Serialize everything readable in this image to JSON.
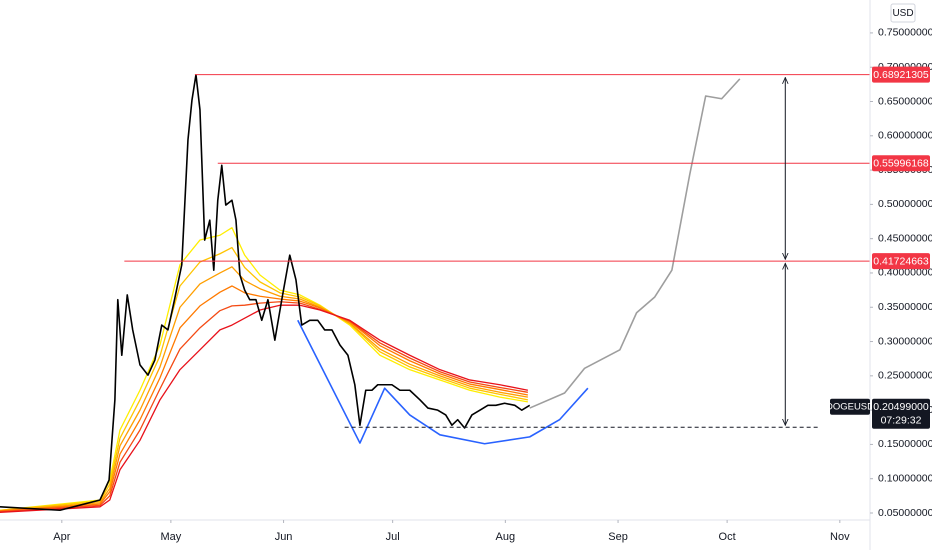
{
  "chart_data": {
    "type": "line",
    "symbol": "DOGEUSD",
    "currency": "USD",
    "xlim": [
      73,
      312.3
    ],
    "ylim": [
      0.0398,
      0.798
    ],
    "xticks": [
      {
        "value": 90,
        "label": "Apr"
      },
      {
        "value": 120,
        "label": "May"
      },
      {
        "value": 151,
        "label": "Jun"
      },
      {
        "value": 181,
        "label": "Jul"
      },
      {
        "value": 212,
        "label": "Aug"
      },
      {
        "value": 243,
        "label": "Sep"
      },
      {
        "value": 273,
        "label": "Oct"
      },
      {
        "value": 304,
        "label": "Nov"
      }
    ],
    "yticks": [
      {
        "value": 0.05,
        "label": "0.05000000"
      },
      {
        "value": 0.1,
        "label": "0.10000000"
      },
      {
        "value": 0.15,
        "label": "0.15000000"
      },
      {
        "value": 0.2,
        "label": "0.20000000"
      },
      {
        "value": 0.25,
        "label": "0.25000000"
      },
      {
        "value": 0.3,
        "label": "0.30000000"
      },
      {
        "value": 0.35,
        "label": "0.35000000"
      },
      {
        "value": 0.4,
        "label": "0.40000000"
      },
      {
        "value": 0.45,
        "label": "0.45000000"
      },
      {
        "value": 0.5,
        "label": "0.50000000"
      },
      {
        "value": 0.55,
        "label": "0.55000000"
      },
      {
        "value": 0.6,
        "label": "0.60000000"
      },
      {
        "value": 0.65,
        "label": "0.65000000"
      },
      {
        "value": 0.7,
        "label": "0.70000000"
      },
      {
        "value": 0.75,
        "label": "0.75000000"
      }
    ],
    "series": [
      {
        "color": "#ffee00",
        "x": [
          73,
          100.5,
          103.2,
          106,
          111.5,
          117,
          122.5,
          128,
          133.5,
          136.8,
          140.3,
          144.5,
          150,
          155.5,
          161,
          169.2,
          177.5,
          185.7,
          194,
          202.2,
          210.5,
          218.2
        ],
        "values": [
          0.054,
          0.069,
          0.098,
          0.171,
          0.229,
          0.295,
          0.412,
          0.448,
          0.455,
          0.466,
          0.426,
          0.397,
          0.375,
          0.368,
          0.353,
          0.324,
          0.28,
          0.259,
          0.244,
          0.229,
          0.219,
          0.212
        ]
      },
      {
        "color": "#ffc400",
        "x": [
          73,
          100.5,
          103.2,
          106,
          111.5,
          117,
          122.5,
          128,
          133.5,
          136.8,
          140.3,
          144.5,
          150,
          155.5,
          161,
          169.2,
          177.5,
          185.7,
          194,
          202.2,
          210.5,
          218.2
        ],
        "values": [
          0.054,
          0.067,
          0.092,
          0.159,
          0.215,
          0.279,
          0.381,
          0.416,
          0.428,
          0.437,
          0.408,
          0.387,
          0.371,
          0.365,
          0.352,
          0.326,
          0.285,
          0.263,
          0.247,
          0.232,
          0.223,
          0.215
        ]
      },
      {
        "color": "#ff9f00",
        "x": [
          73,
          100.5,
          103.2,
          106,
          111.5,
          117,
          122.5,
          128,
          133.5,
          136.8,
          140.3,
          144.5,
          150,
          155.5,
          161,
          169.2,
          177.5,
          185.7,
          194,
          202.2,
          210.5,
          218.2
        ],
        "values": [
          0.053,
          0.065,
          0.086,
          0.148,
          0.2,
          0.263,
          0.35,
          0.384,
          0.4,
          0.409,
          0.389,
          0.377,
          0.366,
          0.362,
          0.35,
          0.327,
          0.289,
          0.267,
          0.25,
          0.235,
          0.226,
          0.219
        ]
      },
      {
        "color": "#ff7a00",
        "x": [
          73,
          100.5,
          103.2,
          106,
          111.5,
          117,
          122.5,
          128,
          133.5,
          136.8,
          140.3,
          144.5,
          150,
          155.5,
          161,
          169.2,
          177.5,
          185.7,
          194,
          202.2,
          210.5,
          218.2
        ],
        "values": [
          0.053,
          0.063,
          0.081,
          0.136,
          0.186,
          0.247,
          0.32,
          0.352,
          0.372,
          0.381,
          0.371,
          0.366,
          0.362,
          0.359,
          0.349,
          0.329,
          0.294,
          0.272,
          0.253,
          0.238,
          0.23,
          0.222
        ]
      },
      {
        "color": "#f44a14",
        "x": [
          73,
          100.5,
          103.2,
          106,
          111.5,
          117,
          122.5,
          128,
          133.5,
          136.8,
          140.3,
          144.5,
          150,
          155.5,
          161,
          169.2,
          177.5,
          185.7,
          194,
          202.2,
          210.5,
          218.2
        ],
        "values": [
          0.052,
          0.061,
          0.075,
          0.124,
          0.171,
          0.231,
          0.289,
          0.32,
          0.345,
          0.352,
          0.353,
          0.356,
          0.358,
          0.356,
          0.347,
          0.33,
          0.298,
          0.276,
          0.256,
          0.241,
          0.233,
          0.226
        ]
      },
      {
        "color": "#e8121b",
        "x": [
          73,
          100.5,
          103.2,
          106,
          111.5,
          117,
          122.5,
          128,
          133.5,
          136.8,
          140.3,
          144.5,
          150,
          155.5,
          161,
          169.2,
          177.5,
          185.7,
          194,
          202.2,
          210.5,
          218.2
        ],
        "values": [
          0.051,
          0.059,
          0.069,
          0.113,
          0.156,
          0.215,
          0.259,
          0.288,
          0.317,
          0.324,
          0.334,
          0.346,
          0.353,
          0.353,
          0.346,
          0.331,
          0.302,
          0.28,
          0.259,
          0.244,
          0.237,
          0.229
        ]
      },
      {
        "name": "DOGEUSD",
        "color": "#000000",
        "x": [
          73,
          89.5,
          100.5,
          103,
          104.6,
          105.4,
          106.5,
          108,
          109.5,
          111.5,
          113.7,
          115.6,
          117.5,
          119.2,
          121,
          123,
          124.7,
          125.8,
          126.9,
          128,
          129.3,
          130.7,
          131.8,
          132.9,
          134,
          135.1,
          136.8,
          137.9,
          139,
          140.3,
          141.7,
          143.4,
          145,
          146.7,
          148.6,
          150.5,
          152.7,
          154.4,
          156,
          158.2,
          160.4,
          162.3,
          164.3,
          166.5,
          168.7,
          170.6,
          172,
          173.6,
          175.3,
          176.9,
          178.8,
          180.8,
          183,
          185.7,
          188.5,
          190.7,
          193.4,
          195.6,
          197.3,
          198.9,
          200.8,
          202.8,
          205,
          207.2,
          209.4,
          211.8,
          214.6,
          216.5,
          218.7
        ],
        "values": [
          0.059,
          0.054,
          0.069,
          0.098,
          0.215,
          0.361,
          0.28,
          0.368,
          0.317,
          0.266,
          0.251,
          0.273,
          0.324,
          0.317,
          0.361,
          0.412,
          0.594,
          0.652,
          0.689,
          0.638,
          0.448,
          0.477,
          0.404,
          0.506,
          0.557,
          0.499,
          0.506,
          0.477,
          0.397,
          0.375,
          0.361,
          0.361,
          0.331,
          0.361,
          0.302,
          0.361,
          0.426,
          0.39,
          0.324,
          0.331,
          0.331,
          0.317,
          0.317,
          0.295,
          0.28,
          0.237,
          0.178,
          0.229,
          0.229,
          0.237,
          0.237,
          0.237,
          0.229,
          0.229,
          0.215,
          0.203,
          0.2,
          0.193,
          0.178,
          0.186,
          0.174,
          0.193,
          0.2,
          0.207,
          0.207,
          0.21,
          0.207,
          0.2,
          0.207
        ],
        "last": {
          "value": 0.20499,
          "label": "0.20499000"
        },
        "countdown": "07:29:32"
      }
    ],
    "projection": {
      "color": "#9e9e9e",
      "x": [
        218.7,
        228.3,
        233.8,
        243.5,
        248.1,
        253.1,
        257.8,
        262.7,
        267.1,
        271.5,
        276.5
      ],
      "values": [
        0.203,
        0.225,
        0.261,
        0.288,
        0.342,
        0.365,
        0.404,
        0.543,
        0.658,
        0.654,
        0.683
      ]
    },
    "pattern": {
      "color": "#2962ff",
      "x": [
        154.9,
        172,
        178.8,
        185.7,
        194,
        206.3,
        218.7,
        226.9,
        234.7
      ],
      "values": [
        0.331,
        0.152,
        0.232,
        0.193,
        0.164,
        0.151,
        0.161,
        0.186,
        0.232
      ]
    },
    "levels": [
      {
        "value": 0.68921305,
        "x_start": 126.6
      },
      {
        "value": 0.55996168,
        "x_start": 132.9
      },
      {
        "value": 0.41724663,
        "x_start": 107.2
      }
    ],
    "level_color": "#f23645",
    "support": {
      "value": 0.175,
      "x": [
        167.8,
        298
      ]
    },
    "arrows": [
      {
        "x": 289,
        "values": [
          0.685,
          0.42
        ]
      },
      {
        "x": 289,
        "values": [
          0.414,
          0.178
        ]
      }
    ]
  }
}
